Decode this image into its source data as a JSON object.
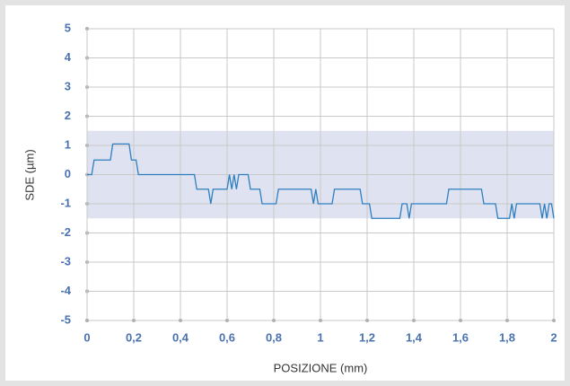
{
  "chart_data": {
    "type": "line",
    "xlabel": "POSIZIONE (mm)",
    "ylabel": "SDE (µm)",
    "x": [
      0,
      0.02,
      0.03,
      0.1,
      0.11,
      0.18,
      0.19,
      0.21,
      0.22,
      0.46,
      0.47,
      0.52,
      0.53,
      0.54,
      0.6,
      0.61,
      0.62,
      0.63,
      0.64,
      0.65,
      0.69,
      0.7,
      0.74,
      0.75,
      0.81,
      0.82,
      0.96,
      0.97,
      0.98,
      0.99,
      1.05,
      1.06,
      1.17,
      1.18,
      1.21,
      1.22,
      1.34,
      1.35,
      1.37,
      1.38,
      1.39,
      1.54,
      1.55,
      1.69,
      1.7,
      1.75,
      1.76,
      1.81,
      1.82,
      1.83,
      1.84,
      1.94,
      1.95,
      1.96,
      1.97,
      1.98,
      1.99,
      2.0
    ],
    "values": [
      0,
      0,
      0.5,
      0.5,
      1.05,
      1.05,
      0.5,
      0.5,
      0,
      0,
      -0.5,
      -0.5,
      -1,
      -0.5,
      -0.5,
      0,
      -0.5,
      0,
      -0.5,
      0,
      0,
      -0.5,
      -0.5,
      -1,
      -1,
      -0.5,
      -0.5,
      -1,
      -0.5,
      -1,
      -1,
      -0.5,
      -0.5,
      -1,
      -1,
      -1.5,
      -1.5,
      -1,
      -1,
      -1.5,
      -1,
      -1,
      -0.5,
      -0.5,
      -1,
      -1,
      -1.5,
      -1.5,
      -1,
      -1.5,
      -1,
      -1,
      -1.5,
      -1,
      -1.5,
      -1,
      -1,
      -1.5
    ],
    "color": "#2e7fc0",
    "band": [
      -1.5,
      1.5
    ],
    "band_color": "#dfe3f1",
    "xlim": [
      0,
      2
    ],
    "ylim": [
      -5,
      5
    ],
    "xticks": [
      0,
      {
        "value": 0.2,
        "label": "0,2"
      },
      {
        "value": 0.4,
        "label": "0,4"
      },
      {
        "value": 0.6,
        "label": "0,6"
      },
      {
        "value": 0.8,
        "label": "0,8"
      },
      1,
      {
        "value": 1.2,
        "label": "1,2"
      },
      {
        "value": 1.4,
        "label": "1,4"
      },
      {
        "value": 1.6,
        "label": "1,6"
      },
      {
        "value": 1.8,
        "label": "1,8"
      },
      2
    ],
    "yticks": [
      -5,
      -4,
      -3,
      -2,
      -1,
      0,
      1,
      2,
      3,
      4,
      5
    ],
    "grid": true
  }
}
